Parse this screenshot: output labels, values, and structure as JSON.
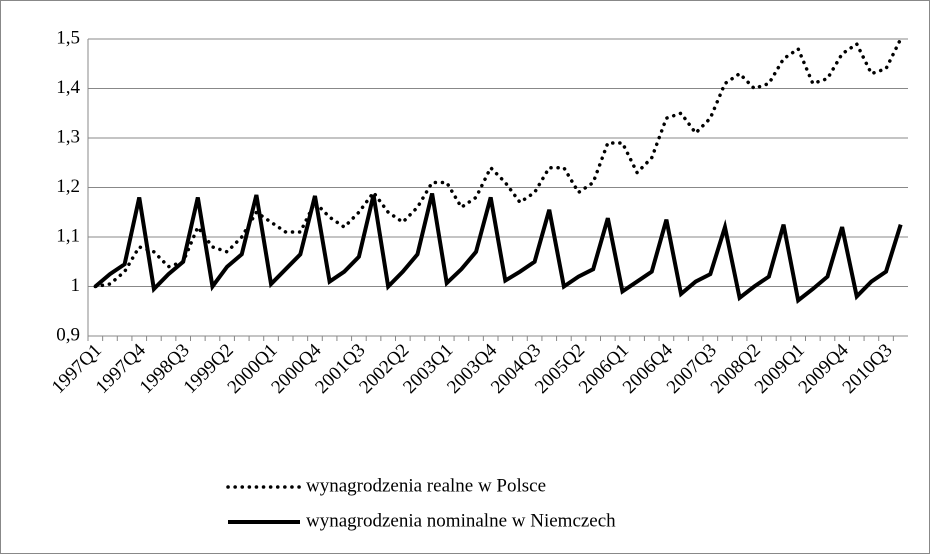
{
  "chart_data": {
    "type": "line",
    "categories": [
      "1997Q1",
      null,
      null,
      "1997Q4",
      null,
      null,
      "1998Q3",
      null,
      null,
      "1999Q2",
      null,
      null,
      "2000Q1",
      null,
      null,
      "2000Q4",
      null,
      null,
      "2001Q3",
      null,
      null,
      "2002Q2",
      null,
      null,
      "2003Q1",
      null,
      null,
      "2003Q4",
      null,
      null,
      "2004Q3",
      null,
      null,
      "2005Q2",
      null,
      null,
      "2006Q1",
      null,
      null,
      "2006Q4",
      null,
      null,
      "2007Q3",
      null,
      null,
      "2008Q2",
      null,
      null,
      "2009Q1",
      null,
      null,
      "2009Q4",
      null,
      null,
      "2010Q3",
      null
    ],
    "series": [
      {
        "name": "wynagrodzenia realne w Polsce",
        "color": "#000000",
        "dash": "dotted",
        "values": [
          1.0,
          1.005,
          1.03,
          1.08,
          1.07,
          1.04,
          1.05,
          1.12,
          1.08,
          1.07,
          1.1,
          1.15,
          1.13,
          1.11,
          1.11,
          1.17,
          1.14,
          1.12,
          1.15,
          1.19,
          1.15,
          1.13,
          1.16,
          1.21,
          1.21,
          1.16,
          1.18,
          1.24,
          1.21,
          1.17,
          1.19,
          1.24,
          1.24,
          1.19,
          1.21,
          1.29,
          1.29,
          1.23,
          1.26,
          1.34,
          1.35,
          1.31,
          1.34,
          1.41,
          1.43,
          1.4,
          1.41,
          1.46,
          1.48,
          1.41,
          1.42,
          1.47,
          1.49,
          1.43,
          1.44,
          1.5
        ]
      },
      {
        "name": "wynagrodzenia nominalne w Niemczech",
        "color": "#000000",
        "dash": "solid",
        "values": [
          1.0,
          1.025,
          1.045,
          1.18,
          0.995,
          1.025,
          1.05,
          1.18,
          1.0,
          1.04,
          1.065,
          1.185,
          1.005,
          1.035,
          1.065,
          1.183,
          1.01,
          1.03,
          1.06,
          1.185,
          1.0,
          1.03,
          1.065,
          1.188,
          1.007,
          1.035,
          1.07,
          1.18,
          1.012,
          1.03,
          1.05,
          1.155,
          1.0,
          1.02,
          1.035,
          1.138,
          0.99,
          1.01,
          1.03,
          1.135,
          0.985,
          1.01,
          1.025,
          1.12,
          0.977,
          1.0,
          1.02,
          1.125,
          0.972,
          0.995,
          1.02,
          1.12,
          0.98,
          1.01,
          1.03,
          1.125
        ]
      }
    ],
    "ylim": [
      0.9,
      1.5
    ],
    "yticks": [
      {
        "value": 0.9,
        "label": "0,9"
      },
      1,
      {
        "value": 1.1,
        "label": "1,1"
      },
      {
        "value": 1.2,
        "label": "1,2"
      },
      {
        "value": 1.3,
        "label": "1,3"
      },
      {
        "value": 1.4,
        "label": "1,4"
      },
      {
        "value": 1.5,
        "label": "1,5"
      }
    ],
    "grid": true
  }
}
